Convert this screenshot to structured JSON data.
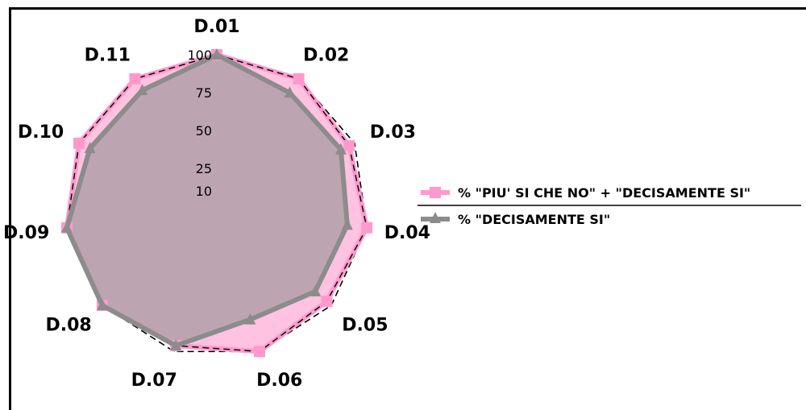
{
  "chart_data": {
    "type": "radar",
    "categories": [
      "D.01",
      "D.02",
      "D.03",
      "D.04",
      "D.05",
      "D.06",
      "D.07",
      "D.08",
      "D.09",
      "D.10",
      "D.11"
    ],
    "rlim": [
      0,
      100
    ],
    "rticks": [
      10,
      25,
      50,
      75,
      100
    ],
    "rtick_labels": [
      "10",
      "25",
      "50",
      "75",
      "100"
    ],
    "grid": true,
    "legend_position": "right",
    "series": [
      {
        "name": "% \"PIU' SI CHE NO\" + \"DECISAMENTE SI\"",
        "values": [
          100,
          100,
          96,
          100,
          96,
          100,
          96,
          100,
          100,
          100,
          100
        ],
        "color": "#ff99cc",
        "fill": "#ffc2e0",
        "marker": "square"
      },
      {
        "name": "% \"DECISAMENTE SI\"",
        "values": [
          100,
          89,
          90,
          87,
          86,
          78,
          96,
          100,
          100,
          92,
          91
        ],
        "color": "#8c8c8c",
        "fill": "#b0a0a8",
        "marker": "triangle"
      }
    ]
  }
}
